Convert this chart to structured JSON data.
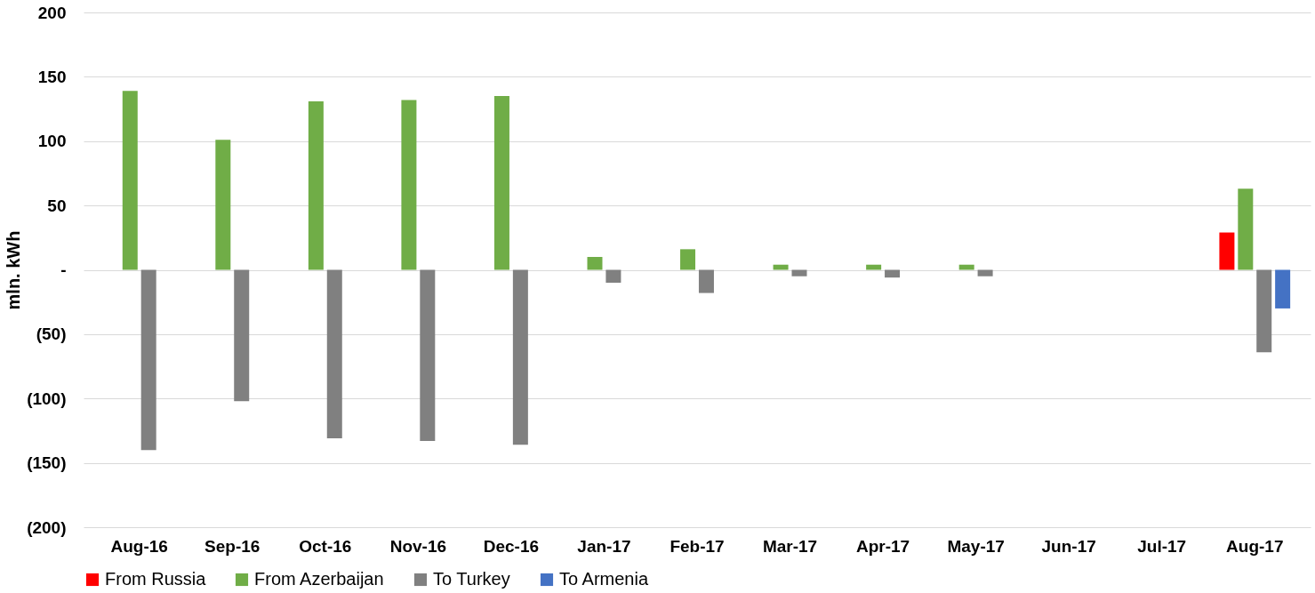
{
  "chart_data": {
    "type": "bar",
    "ylabel": "mln. kWh",
    "categories": [
      "Aug-16",
      "Sep-16",
      "Oct-16",
      "Nov-16",
      "Dec-16",
      "Jan-17",
      "Feb-17",
      "Mar-17",
      "Apr-17",
      "May-17",
      "Jun-17",
      "Jul-17",
      "Aug-17"
    ],
    "series": [
      {
        "name": "From Russia",
        "color": "#ff0000",
        "values": [
          null,
          null,
          null,
          null,
          null,
          null,
          null,
          null,
          null,
          null,
          null,
          null,
          29
        ]
      },
      {
        "name": "From Azerbaijan",
        "color": "#70ad47",
        "values": [
          139,
          101,
          131,
          132,
          135,
          10,
          16,
          4,
          4,
          4,
          null,
          null,
          63
        ]
      },
      {
        "name": "To Turkey",
        "color": "#808080",
        "values": [
          -140,
          -102,
          -131,
          -133,
          -136,
          -10,
          -18,
          -5,
          -6,
          -5,
          null,
          null,
          -64
        ]
      },
      {
        "name": "To Armenia",
        "color": "#4472c4",
        "values": [
          null,
          null,
          null,
          null,
          null,
          null,
          null,
          null,
          null,
          null,
          null,
          null,
          -30
        ]
      }
    ],
    "ylim": [
      -200,
      200
    ],
    "yticks": [
      {
        "value": -200,
        "label": "(200)"
      },
      {
        "value": -150,
        "label": "(150)"
      },
      {
        "value": -100,
        "label": "(100)"
      },
      {
        "value": -50,
        "label": "(50)"
      },
      {
        "value": 0,
        "label": "-"
      },
      50,
      100,
      150,
      200
    ],
    "grid": "y",
    "legend": "bottom"
  }
}
